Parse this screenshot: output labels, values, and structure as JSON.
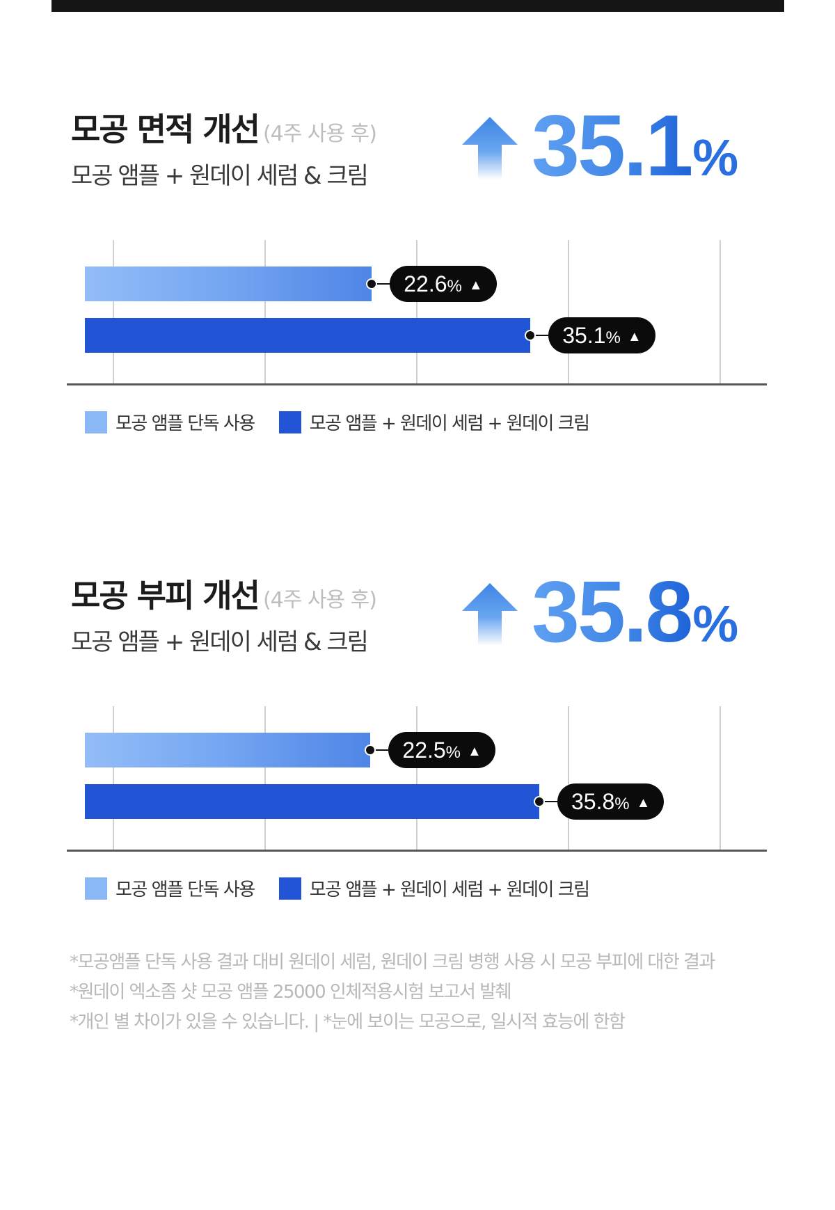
{
  "colors": {
    "light_bar": "#8ab7f6",
    "dark_bar": "#2254d6",
    "accent": "#3f85e6"
  },
  "sections": [
    {
      "title": "모공 면적 개선",
      "title_note": "(4주 사용 후)",
      "subtitle": "모공 앰플 + 원데이 세럼 & 크림",
      "big_value": "35.1",
      "big_unit": "%",
      "bars": [
        {
          "label": "22.6",
          "unit": "%",
          "arrow": "▲"
        },
        {
          "label": "35.1",
          "unit": "%",
          "arrow": "▲"
        }
      ],
      "legend": [
        "모공 앰플 단독 사용",
        "모공 앰플 + 원데이 세럼 + 원데이 크림"
      ]
    },
    {
      "title": "모공 부피 개선",
      "title_note": "(4주 사용 후)",
      "subtitle": "모공 앰플 + 원데이 세럼 & 크림",
      "big_value": "35.8",
      "big_unit": "%",
      "bars": [
        {
          "label": "22.5",
          "unit": "%",
          "arrow": "▲"
        },
        {
          "label": "35.8",
          "unit": "%",
          "arrow": "▲"
        }
      ],
      "legend": [
        "모공 앰플 단독 사용",
        "모공 앰플 + 원데이 세럼 + 원데이 크림"
      ]
    }
  ],
  "chart_data": [
    {
      "type": "bar",
      "orientation": "horizontal",
      "title": "모공 면적 개선",
      "categories": [
        "모공 앰플 단독 사용",
        "모공 앰플 + 원데이 세럼 + 원데이 크림"
      ],
      "values": [
        22.6,
        35.1
      ],
      "xlim": [
        0,
        50
      ],
      "grid": true,
      "legend_position": "bottom-left"
    },
    {
      "type": "bar",
      "orientation": "horizontal",
      "title": "모공 부피 개선",
      "categories": [
        "모공 앰플 단독 사용",
        "모공 앰플 + 원데이 세럼 + 원데이 크림"
      ],
      "values": [
        22.5,
        35.8
      ],
      "xlim": [
        0,
        50
      ],
      "grid": true,
      "legend_position": "bottom-left"
    }
  ],
  "footnotes": [
    "*모공앰플 단독 사용 결과 대비 원데이 세럼, 원데이 크림 병행 사용 시 모공 부피에 대한 결과",
    "*원데이 엑소좀 샷 모공 앰플 25000 인체적용시험 보고서 발췌",
    "*개인 별 차이가 있을 수 있습니다. |  *눈에 보이는 모공으로, 일시적 효능에 한함"
  ]
}
